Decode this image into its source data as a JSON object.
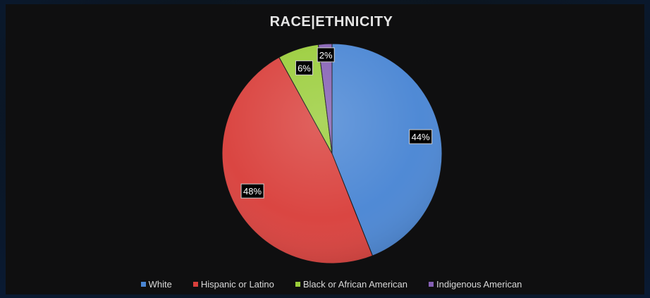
{
  "chart_data": {
    "type": "pie",
    "title": "RACE|ETHNICITY",
    "categories": [
      "White",
      "Hispanic or Latino",
      "Black or African American",
      "Indigenous American"
    ],
    "values": [
      44,
      48,
      6,
      2
    ],
    "labels": [
      "44%",
      "48%",
      "6%",
      "2%"
    ],
    "colors": [
      "#4a86d4",
      "#d9403c",
      "#9acd3a",
      "#8560b4"
    ],
    "legend_position": "bottom"
  }
}
